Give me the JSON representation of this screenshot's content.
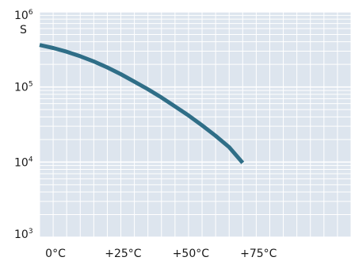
{
  "chart_data": {
    "type": "line",
    "title": "",
    "xlabel": "",
    "ylabel": "S",
    "y_scale": "log",
    "ylim": [
      1000,
      1000000
    ],
    "xlim": [
      0,
      115
    ],
    "x_ticks": [
      {
        "value": 0,
        "label": "0°C"
      },
      {
        "value": 25,
        "label": "+25°C"
      },
      {
        "value": 50,
        "label": "+50°C"
      },
      {
        "value": 75,
        "label": "+75°C"
      }
    ],
    "y_ticks": [
      {
        "value": 1000,
        "base": "10",
        "exp": "3"
      },
      {
        "value": 10000,
        "base": "10",
        "exp": "4"
      },
      {
        "value": 100000,
        "base": "10",
        "exp": "5"
      },
      {
        "value": 1000000,
        "base": "10",
        "exp": "6"
      }
    ],
    "grid": true,
    "colors": {
      "plot_background": "#dde5ee",
      "grid": "#ffffff",
      "line": "#2f6e87"
    },
    "series": [
      {
        "x": [
          0,
          5,
          10,
          15,
          20,
          25,
          30,
          35,
          40,
          45,
          50,
          55,
          60,
          65,
          70,
          75
        ],
        "values": [
          363000,
          331000,
          295000,
          257000,
          219000,
          182000,
          148000,
          118000,
          93300,
          72400,
          55000,
          41700,
          30900,
          22400,
          15800,
          9770
        ]
      }
    ]
  }
}
